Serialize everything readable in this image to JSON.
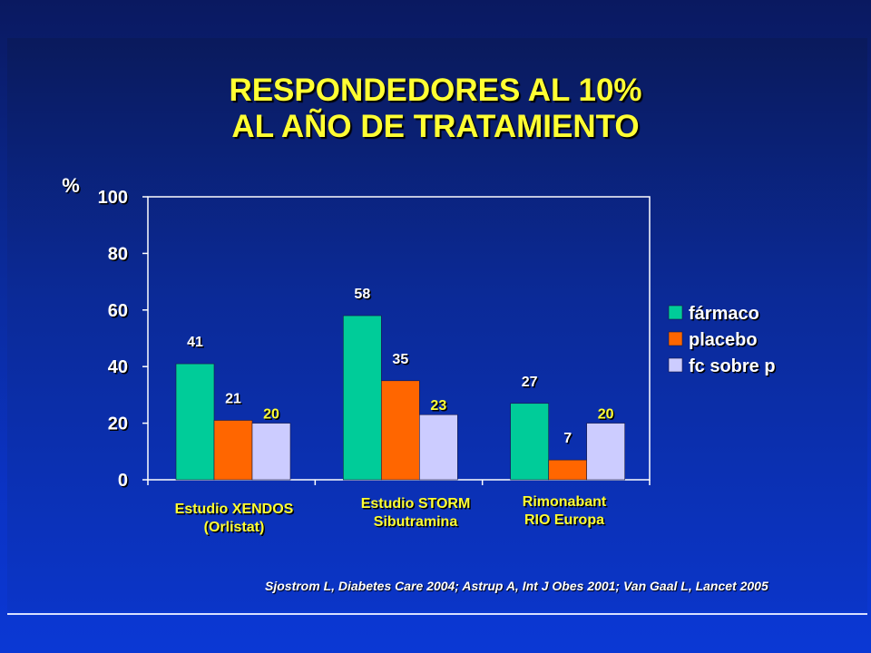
{
  "slide": {
    "title_line1": "RESPONDEDORES AL 10%",
    "title_line2": "AL AÑO DE TRATAMIENTO",
    "citation": "Sjostrom L, Diabetes Care 2004; Astrup A, Int J Obes 2001; Van Gaal L,  Lancet  2005"
  },
  "colors": {
    "farmaco": "#00cc99",
    "placebo": "#ff6600",
    "fc_sobre_p": "#ccccff",
    "title": "#ffff33",
    "background": "#0b2fb8"
  },
  "chart_data": {
    "type": "bar",
    "ylabel": "%",
    "ylim": [
      0,
      100
    ],
    "yticks": [
      0,
      20,
      40,
      60,
      80,
      100
    ],
    "grid": false,
    "legend_position": "right",
    "categories": [
      [
        "Estudio XENDOS",
        "(Orlistat)"
      ],
      [
        "Estudio STORM",
        "Sibutramina"
      ],
      [
        "Rimonabant",
        "RIO Europa"
      ]
    ],
    "series": [
      {
        "name": "fármaco",
        "values": [
          41,
          58,
          27
        ]
      },
      {
        "name": "placebo",
        "values": [
          21,
          35,
          7
        ]
      },
      {
        "name": "fc sobre p",
        "values": [
          20,
          23,
          20
        ]
      }
    ]
  }
}
